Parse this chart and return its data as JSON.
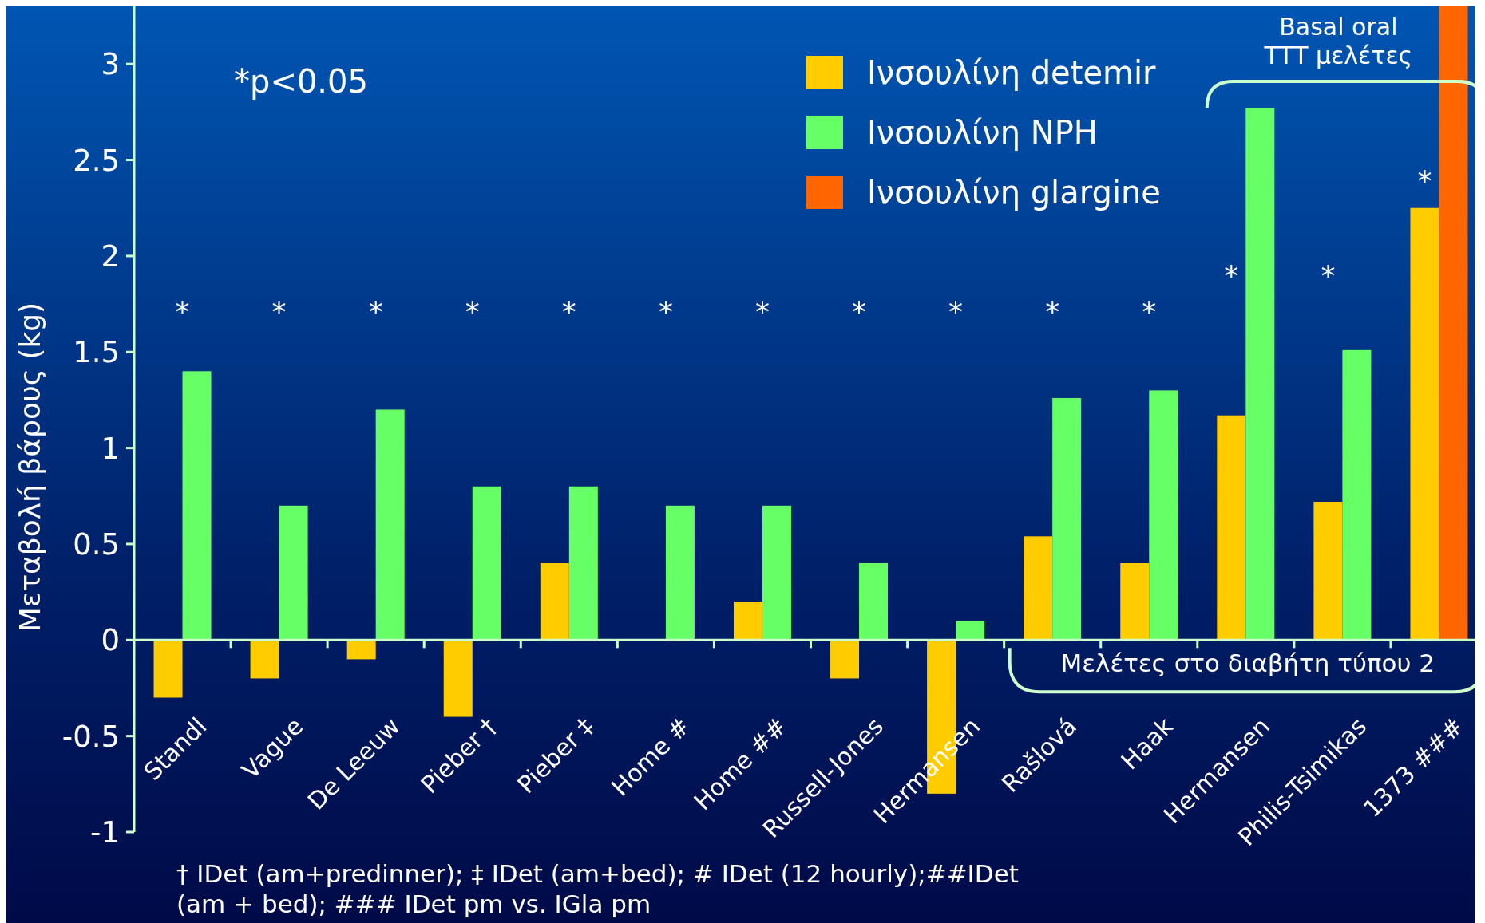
{
  "chart_data": {
    "type": "bar",
    "ylabel": "Μεταβολή βάρους (kg)",
    "categories": [
      "Standl",
      "Vague",
      "De Leeuw",
      "Pieber †",
      "Pieber ‡",
      "Home #",
      "Home ##",
      "Russell-Jones",
      "Hermansen",
      "Rašlová",
      "Haak",
      "Hermansen",
      "Philis-Tsimikas",
      "1373 ###"
    ],
    "series": [
      {
        "name": "Ινσουλίνη detemir",
        "color": "#ffcc00",
        "values": [
          -0.3,
          -0.2,
          -0.1,
          -0.4,
          0.4,
          0,
          0.2,
          -0.2,
          -0.8,
          0.54,
          0.4,
          1.17,
          0.72,
          2.25
        ]
      },
      {
        "name": "Ινσουλίνη NPH",
        "color": "#66ff66",
        "values": [
          1.4,
          0.7,
          1.2,
          0.8,
          0.8,
          0.7,
          0.7,
          0.4,
          0.1,
          1.26,
          1.3,
          2.77,
          1.51,
          null
        ]
      },
      {
        "name": "Ινσουλίνη glargine",
        "color": "#ff6600",
        "values": [
          null,
          null,
          null,
          null,
          null,
          null,
          null,
          null,
          null,
          null,
          null,
          null,
          null,
          3.3
        ]
      }
    ],
    "ref_lines": [
      {
        "axis": "y",
        "value": 0,
        "color": "#ccffcc"
      }
    ],
    "ylim": [
      -1,
      3.3
    ],
    "yticks": [
      -1,
      -0.5,
      0,
      0.5,
      1,
      1.5,
      2,
      2.5,
      3
    ],
    "legend": "top right",
    "annotations": [
      "*p<0.05",
      "Μελέτες στο διαβήτη τύπου 2",
      "Basal oral ΤΤΤ μελέτες",
      "† IDet (am+predinner); ‡ IDet (am+bed); # IDet (12 hourly);##IDet (am + bed); ### IDet pm vs. IGla pm",
      "*",
      "*",
      "*",
      "*",
      "*",
      "*",
      "*",
      "*",
      "*",
      "*",
      "*",
      "*",
      "*",
      "*"
    ]
  }
}
